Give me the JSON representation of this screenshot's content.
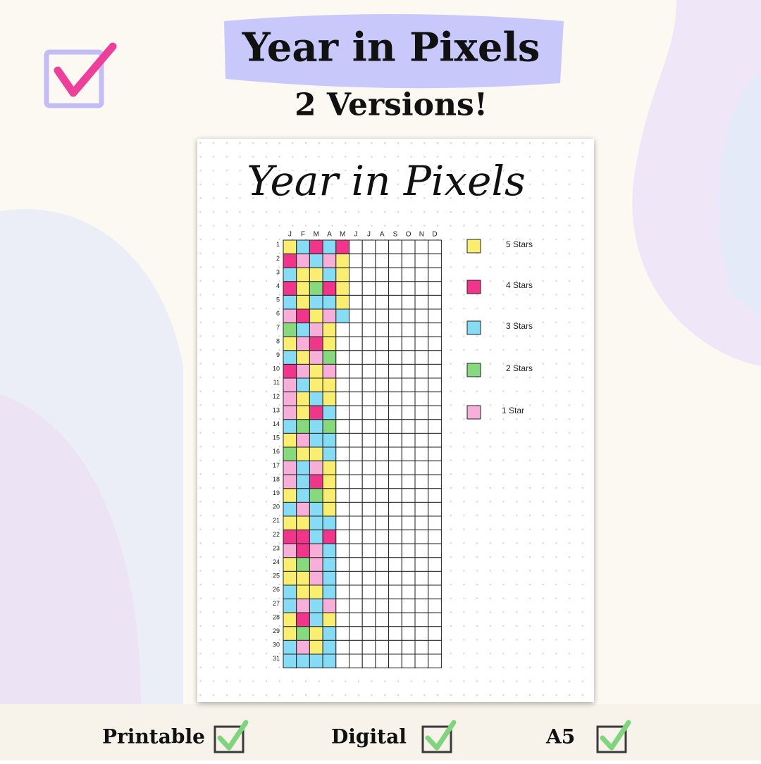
{
  "header": {
    "title": "Year in Pixels",
    "subtitle": "2 Versions!"
  },
  "sheet": {
    "title": "Year in Pixels",
    "months": [
      "J",
      "F",
      "M",
      "A",
      "M",
      "J",
      "J",
      "A",
      "S",
      "O",
      "N",
      "D"
    ],
    "days": [
      "1",
      "2",
      "3",
      "4",
      "5",
      "6",
      "7",
      "8",
      "9",
      "10",
      "11",
      "12",
      "13",
      "14",
      "15",
      "16",
      "17",
      "18",
      "19",
      "20",
      "21",
      "22",
      "23",
      "24",
      "25",
      "26",
      "27",
      "28",
      "29",
      "30",
      "31"
    ],
    "ratings": [
      [
        5,
        3,
        4,
        3,
        4,
        null,
        null,
        null,
        null,
        null,
        null,
        null
      ],
      [
        4,
        1,
        3,
        1,
        5,
        null,
        null,
        null,
        null,
        null,
        null,
        null
      ],
      [
        3,
        5,
        5,
        3,
        5,
        null,
        null,
        null,
        null,
        null,
        null,
        null
      ],
      [
        4,
        5,
        2,
        4,
        5,
        null,
        null,
        null,
        null,
        null,
        null,
        null
      ],
      [
        3,
        5,
        3,
        3,
        5,
        null,
        null,
        null,
        null,
        null,
        null,
        null
      ],
      [
        1,
        4,
        5,
        1,
        3,
        null,
        null,
        null,
        null,
        null,
        null,
        null
      ],
      [
        2,
        3,
        1,
        5,
        null,
        null,
        null,
        null,
        null,
        null,
        null,
        null
      ],
      [
        5,
        1,
        4,
        5,
        null,
        null,
        null,
        null,
        null,
        null,
        null,
        null
      ],
      [
        3,
        5,
        1,
        2,
        null,
        null,
        null,
        null,
        null,
        null,
        null,
        null
      ],
      [
        4,
        1,
        5,
        1,
        null,
        null,
        null,
        null,
        null,
        null,
        null,
        null
      ],
      [
        1,
        3,
        5,
        5,
        null,
        null,
        null,
        null,
        null,
        null,
        null,
        null
      ],
      [
        1,
        5,
        3,
        5,
        null,
        null,
        null,
        null,
        null,
        null,
        null,
        null
      ],
      [
        1,
        5,
        4,
        3,
        null,
        null,
        null,
        null,
        null,
        null,
        null,
        null
      ],
      [
        3,
        2,
        3,
        2,
        null,
        null,
        null,
        null,
        null,
        null,
        null,
        null
      ],
      [
        5,
        1,
        3,
        3,
        null,
        null,
        null,
        null,
        null,
        null,
        null,
        null
      ],
      [
        2,
        5,
        5,
        3,
        null,
        null,
        null,
        null,
        null,
        null,
        null,
        null
      ],
      [
        1,
        3,
        1,
        5,
        null,
        null,
        null,
        null,
        null,
        null,
        null,
        null
      ],
      [
        1,
        3,
        4,
        5,
        null,
        null,
        null,
        null,
        null,
        null,
        null,
        null
      ],
      [
        5,
        3,
        2,
        5,
        null,
        null,
        null,
        null,
        null,
        null,
        null,
        null
      ],
      [
        3,
        1,
        3,
        5,
        null,
        null,
        null,
        null,
        null,
        null,
        null,
        null
      ],
      [
        5,
        5,
        3,
        3,
        null,
        null,
        null,
        null,
        null,
        null,
        null,
        null
      ],
      [
        4,
        4,
        3,
        4,
        null,
        null,
        null,
        null,
        null,
        null,
        null,
        null
      ],
      [
        1,
        4,
        1,
        3,
        null,
        null,
        null,
        null,
        null,
        null,
        null,
        null
      ],
      [
        5,
        2,
        1,
        3,
        null,
        null,
        null,
        null,
        null,
        null,
        null,
        null
      ],
      [
        5,
        5,
        1,
        3,
        null,
        null,
        null,
        null,
        null,
        null,
        null,
        null
      ],
      [
        3,
        5,
        5,
        3,
        null,
        null,
        null,
        null,
        null,
        null,
        null,
        null
      ],
      [
        3,
        1,
        3,
        1,
        null,
        null,
        null,
        null,
        null,
        null,
        null,
        null
      ],
      [
        5,
        4,
        3,
        5,
        null,
        null,
        null,
        null,
        null,
        null,
        null,
        null
      ],
      [
        5,
        2,
        5,
        3,
        null,
        null,
        null,
        null,
        null,
        null,
        null,
        null
      ],
      [
        3,
        1,
        5,
        3,
        null,
        null,
        null,
        null,
        null,
        null,
        null,
        null
      ],
      [
        3,
        3,
        3,
        3,
        null,
        null,
        null,
        null,
        null,
        null,
        null,
        null
      ]
    ],
    "legend": [
      {
        "label": "5 Stars",
        "stars": 5,
        "color": "#f9ee70"
      },
      {
        "label": "4 Stars",
        "stars": 4,
        "color": "#f0358b"
      },
      {
        "label": "3 Stars",
        "stars": 3,
        "color": "#86dbf5"
      },
      {
        "label": "2 Stars",
        "stars": 2,
        "color": "#86d97c"
      },
      {
        "label": "1 Star",
        "stars": 1,
        "color": "#f7afd9"
      }
    ]
  },
  "footer": {
    "features": [
      "Printable",
      "Digital",
      "A5"
    ]
  }
}
